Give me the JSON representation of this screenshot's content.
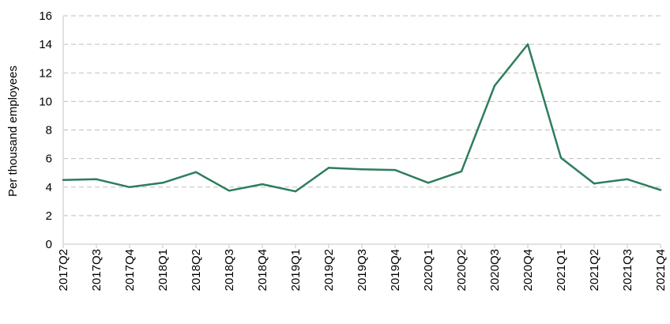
{
  "chart_data": {
    "type": "line",
    "title": "",
    "xlabel": "",
    "ylabel": "Per thousand employees",
    "ylim": [
      0,
      16
    ],
    "yticks": [
      0,
      2,
      4,
      6,
      8,
      10,
      12,
      14,
      16
    ],
    "grid": true,
    "legend": "none",
    "line_color": "#2e7d5b",
    "categories": [
      "2017Q2",
      "2017Q3",
      "2017Q4",
      "2018Q1",
      "2018Q2",
      "2018Q3",
      "2018Q4",
      "2019Q1",
      "2019Q2",
      "2019Q3",
      "2019Q4",
      "2020Q1",
      "2020Q2",
      "2020Q3",
      "2020Q4",
      "2021Q1",
      "2021Q2",
      "2021Q3",
      "2021Q4"
    ],
    "series": [
      {
        "values": [
          4.5,
          4.55,
          4.0,
          4.3,
          5.05,
          3.75,
          4.2,
          3.7,
          5.35,
          5.25,
          5.2,
          4.3,
          5.1,
          11.1,
          14.0,
          6.05,
          4.25,
          4.55,
          3.8
        ]
      }
    ]
  }
}
